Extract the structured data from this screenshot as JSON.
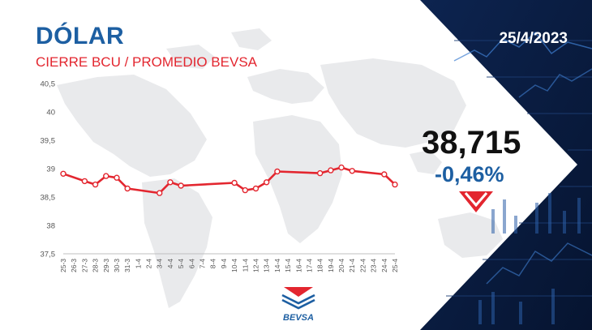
{
  "header": {
    "title": "DÓLAR",
    "subtitle": "CIERRE BCU / PROMEDIO BEVSA",
    "date": "25/4/2023"
  },
  "quote": {
    "price": "38,715",
    "change": "-0,46%",
    "trend_icon": "down-arrow-icon"
  },
  "brand": {
    "logo_text": "BEVSA"
  },
  "colors": {
    "title_blue": "#1d5fa2",
    "accent_red": "#e3262f",
    "panel_navy": "#0a1f44"
  },
  "chart_data": {
    "type": "line",
    "title": "",
    "xlabel": "",
    "ylabel": "",
    "ylim": [
      37.5,
      40.5
    ],
    "y_ticks": [
      "37,5",
      "38",
      "38,5",
      "39",
      "39,5",
      "40",
      "40,5"
    ],
    "y_tick_values": [
      37.5,
      38,
      38.5,
      39,
      39.5,
      40,
      40.5
    ],
    "categories": [
      "25-3",
      "26-3",
      "27-3",
      "28-3",
      "29-3",
      "30-3",
      "31-3",
      "1-4",
      "2-4",
      "3-4",
      "4-4",
      "5-4",
      "6-4",
      "7-4",
      "8-4",
      "9-4",
      "10-4",
      "11-4",
      "12-4",
      "13-4",
      "14-4",
      "15-4",
      "16-4",
      "17-4",
      "18-4",
      "19-4",
      "20-4",
      "21-4",
      "22-4",
      "23-4",
      "24-4",
      "25-4"
    ],
    "series": [
      {
        "color": "#e3262f",
        "values": [
          38.91,
          null,
          38.78,
          38.72,
          38.87,
          38.84,
          38.65,
          null,
          null,
          38.57,
          38.76,
          38.7,
          null,
          null,
          null,
          null,
          38.75,
          38.62,
          38.65,
          38.76,
          38.95,
          null,
          null,
          null,
          38.92,
          38.97,
          39.02,
          38.96,
          null,
          null,
          38.9,
          38.72
        ]
      }
    ],
    "grid": false,
    "legend": "none"
  }
}
